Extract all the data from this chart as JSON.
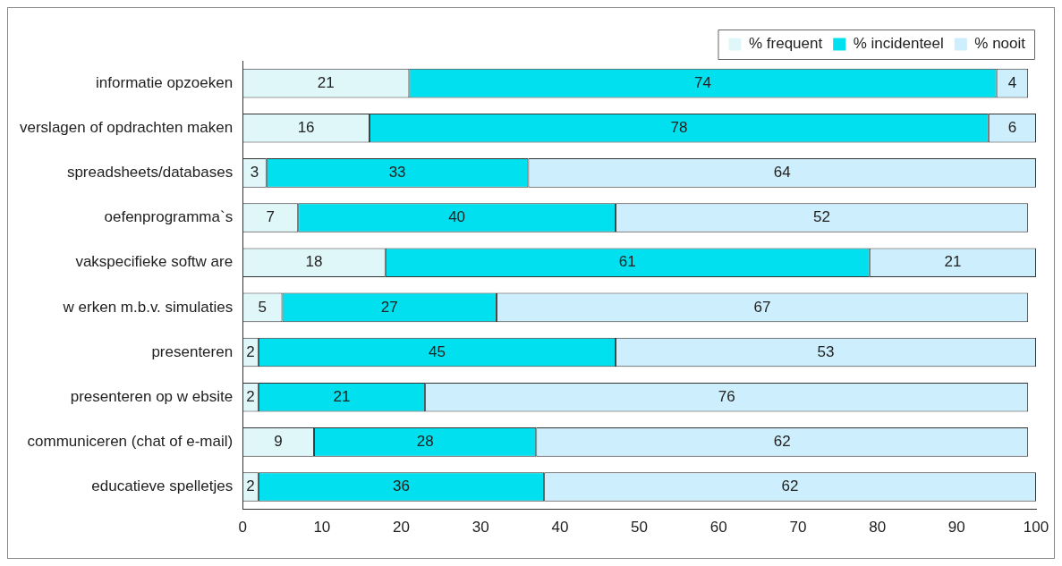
{
  "chart_data": {
    "type": "bar",
    "orientation": "horizontal",
    "stacked": true,
    "data_labels": true,
    "legend": "top right",
    "grid": false,
    "categories": [
      "informatie opzoeken",
      "verslagen of opdrachten maken",
      "spreadsheets/databases",
      "oefenprogramma`s",
      "vakspecifieke softw are",
      "w erken m.b.v. simulaties",
      "presenteren",
      "presenteren op w ebsite",
      "communiceren (chat of e-mail)",
      "educatieve spelletjes"
    ],
    "series": [
      {
        "name": "% frequent",
        "color": "#e0f7fa",
        "values": [
          21,
          16,
          3,
          7,
          18,
          5,
          2,
          2,
          9,
          2
        ]
      },
      {
        "name": "% incidenteel",
        "color": "#00e0ee",
        "values": [
          74,
          78,
          33,
          40,
          61,
          27,
          45,
          21,
          28,
          36
        ]
      },
      {
        "name": "% nooit",
        "color": "#cdeefc",
        "values": [
          4,
          6,
          64,
          52,
          21,
          67,
          53,
          76,
          62,
          62
        ]
      }
    ],
    "xlim": [
      0,
      100
    ],
    "xticks": [
      0,
      10,
      20,
      30,
      40,
      50,
      60,
      70,
      80,
      90,
      100
    ]
  }
}
